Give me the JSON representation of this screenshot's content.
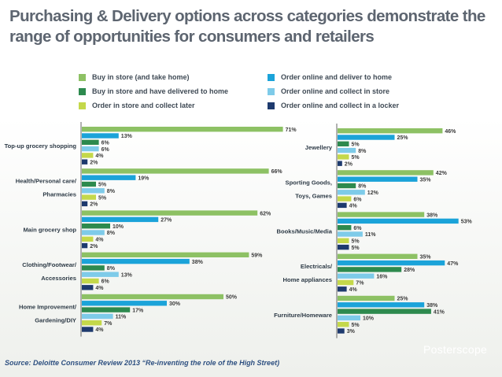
{
  "title": "Purchasing & Delivery options across categories demonstrate the range of opportunities for consumers and retailers",
  "source": "Source: Deloitte Consumer Review 2013 “Re-inventing the role of the High Street)",
  "logo": "Posterscope",
  "colors": {
    "buy_take_home": "#8dc164",
    "buy_delivered": "#2d8a4e",
    "order_collect_later": "#c4d84a",
    "online_deliver": "#1ba3d9",
    "online_collect_store": "#7ecbe9",
    "online_locker": "#1e3a6e"
  },
  "legend": [
    {
      "label": "Buy in store (and take home)",
      "color": "#8dc164"
    },
    {
      "label": "Buy in store and have delivered to home",
      "color": "#2d8a4e"
    },
    {
      "label": "Order in store and collect later",
      "color": "#c4d84a"
    },
    {
      "label": "Order online and deliver to home",
      "color": "#1ba3d9"
    },
    {
      "label": "Order online and collect in store",
      "color": "#7ecbe9"
    },
    {
      "label": "Order online and collect in a locker",
      "color": "#1e3a6e"
    }
  ],
  "chart_data": [
    {
      "type": "bar",
      "orientation": "horizontal",
      "series_order": [
        "Buy in store (and take home)",
        "Order online and deliver to home",
        "Buy in store and have delivered to home",
        "Order online and collect in store",
        "Order in store and collect later",
        "Order online and collect in a locker"
      ],
      "categories": [
        {
          "label": [
            "Top-up grocery shopping"
          ],
          "values": [
            71,
            13,
            6,
            6,
            4,
            2
          ]
        },
        {
          "label": [
            "Health/Personal care/",
            "Pharmacies"
          ],
          "values": [
            66,
            19,
            5,
            8,
            5,
            2
          ]
        },
        {
          "label": [
            "Main grocery shop"
          ],
          "values": [
            62,
            27,
            10,
            8,
            4,
            2
          ]
        },
        {
          "label": [
            "Clothing/Footwear/",
            "Accessories"
          ],
          "values": [
            59,
            38,
            8,
            13,
            6,
            4
          ]
        },
        {
          "label": [
            "Home Improvement/",
            "Gardening/DIY"
          ],
          "values": [
            50,
            30,
            17,
            11,
            7,
            4
          ]
        }
      ]
    },
    {
      "type": "bar",
      "orientation": "horizontal",
      "series_order": [
        "Buy in store (and take home)",
        "Order online and deliver to home",
        "Buy in store and have delivered to home",
        "Order online and collect in store",
        "Order in store and collect later",
        "Order online and collect in a locker"
      ],
      "categories": [
        {
          "label": [
            "Jewellery"
          ],
          "values": [
            46,
            25,
            5,
            8,
            5,
            2
          ]
        },
        {
          "label": [
            "Sporting Goods,",
            "Toys, Games"
          ],
          "values": [
            42,
            35,
            8,
            12,
            6,
            4
          ]
        },
        {
          "label": [
            "Books/Music/Media"
          ],
          "values": [
            38,
            53,
            6,
            11,
            5,
            5
          ]
        },
        {
          "label": [
            "Electricals/",
            "Home appliances"
          ],
          "values": [
            35,
            47,
            28,
            16,
            7,
            4
          ]
        },
        {
          "label": [
            "Furniture/Homeware"
          ],
          "values": [
            25,
            38,
            41,
            10,
            5,
            3
          ]
        }
      ]
    }
  ]
}
